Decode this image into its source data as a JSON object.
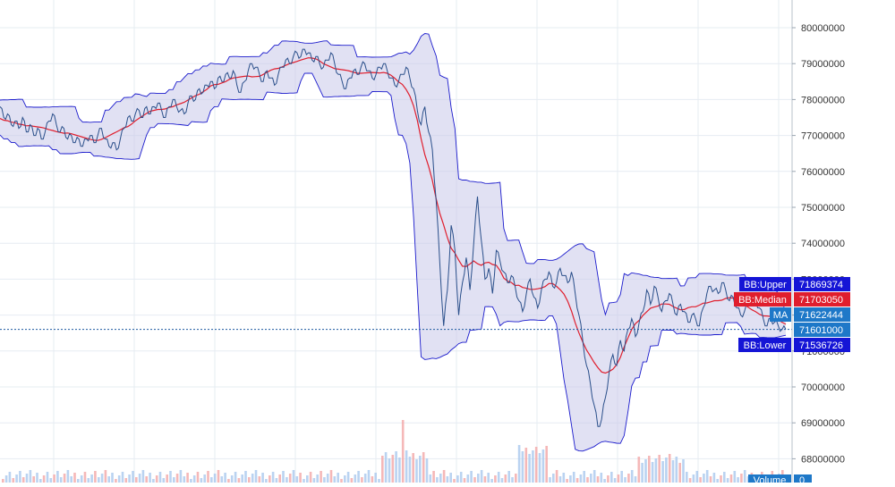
{
  "chart_data": {
    "type": "line",
    "title": "",
    "xlabel": "",
    "ylabel": "",
    "ylim": [
      67500000,
      80500000
    ],
    "grid": true,
    "y_ticks": [
      {
        "value": 68000000,
        "label": "68000000"
      },
      {
        "value": 69000000,
        "label": "69000000"
      },
      {
        "value": 70000000,
        "label": "70000000"
      },
      {
        "value": 71000000,
        "label": "71000000"
      },
      {
        "value": 72000000,
        "label": "72000000"
      },
      {
        "value": 73000000,
        "label": "73000000"
      },
      {
        "value": 74000000,
        "label": "74000000"
      },
      {
        "value": 75000000,
        "label": "75000000"
      },
      {
        "value": 76000000,
        "label": "76000000"
      },
      {
        "value": 77000000,
        "label": "77000000"
      },
      {
        "value": 78000000,
        "label": "78000000"
      },
      {
        "value": 79000000,
        "label": "79000000"
      },
      {
        "value": 80000000,
        "label": "80000000"
      }
    ],
    "price_series": [
      77800000,
      77500000,
      77600000,
      77300000,
      77400000,
      77200000,
      77500000,
      77100000,
      77300000,
      77000000,
      77200000,
      76900000,
      77100000,
      77400000,
      77600000,
      77300000,
      77100000,
      77200000,
      76900000,
      77000000,
      76800000,
      76900000,
      76700000,
      76900000,
      77000000,
      76800000,
      77000000,
      77200000,
      76900000,
      76700000,
      76800000,
      76600000,
      76900000,
      77200000,
      77500000,
      77400000,
      77600000,
      77700000,
      77500000,
      77800000,
      77600000,
      77800000,
      77900000,
      77700000,
      77500000,
      77800000,
      78000000,
      77800000,
      77700000,
      77600000,
      77900000,
      78100000,
      78000000,
      78300000,
      78200000,
      78400000,
      78500000,
      78300000,
      78600000,
      78500000,
      78700000,
      78600000,
      78800000,
      78400000,
      78200000,
      78500000,
      78800000,
      79000000,
      78900000,
      78700000,
      78500000,
      78800000,
      78600000,
      78400000,
      78700000,
      78900000,
      79100000,
      79000000,
      79200000,
      79300000,
      79200000,
      79400000,
      79300000,
      79100000,
      79200000,
      79000000,
      78900000,
      79100000,
      79300000,
      79000000,
      78700000,
      78500000,
      78300000,
      78600000,
      78800000,
      78700000,
      78900000,
      79000000,
      78800000,
      78600000,
      78700000,
      78900000,
      79000000,
      78800000,
      78600000,
      78400000,
      78500000,
      78700000,
      78900000,
      78600000,
      78300000,
      77700000,
      77300000,
      77800000,
      77100000,
      76600000,
      75200000,
      73400000,
      71700000,
      72700000,
      74500000,
      73800000,
      72000000,
      72900000,
      73600000,
      72700000,
      74000000,
      75300000,
      74100000,
      73000000,
      73300000,
      72600000,
      73800000,
      73500000,
      73200000,
      72900000,
      73100000,
      72800000,
      72400000,
      72100000,
      72600000,
      73000000,
      72500000,
      72200000,
      72700000,
      73000000,
      73200000,
      72800000,
      72900000,
      73300000,
      73100000,
      72900000,
      73200000,
      72600000,
      72000000,
      71300000,
      70600000,
      70100000,
      69500000,
      68900000,
      69100000,
      69700000,
      70400000,
      70900000,
      70600000,
      71300000,
      71000000,
      71600000,
      71900000,
      71400000,
      71800000,
      72100000,
      72700000,
      72300000,
      72800000,
      72500000,
      72100000,
      72400000,
      72600000,
      72300000,
      72000000,
      72300000,
      72100000,
      71800000,
      72000000,
      71900000,
      71700000,
      72200000,
      72600000,
      72800000,
      72700000,
      72600000,
      72900000,
      72700000,
      72400000,
      72500000,
      72200000,
      72000000,
      72100000,
      72300000,
      72500000,
      72400000,
      72200000,
      71900000,
      71700000,
      71900000,
      71800000,
      71700000,
      71600000,
      71601000
    ],
    "series": [
      {
        "name": "BB:Upper",
        "last_value": "71869374",
        "color": "#1a1acc"
      },
      {
        "name": "BB:Median",
        "last_value": "71703050",
        "color": "#e01e2d"
      },
      {
        "name": "MA",
        "last_value": "71622444",
        "color": "#1e78c8"
      },
      {
        "name": "",
        "last_value": "71601000",
        "color": "#1e78c8"
      },
      {
        "name": "BB:Lower",
        "last_value": "71536726",
        "color": "#1a1acc"
      }
    ],
    "volume": {
      "label": "Volume",
      "value": "0"
    },
    "last_price": 71601000
  }
}
